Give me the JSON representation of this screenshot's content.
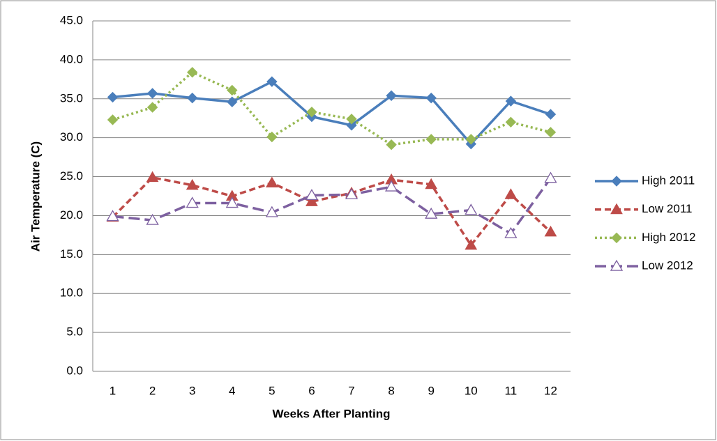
{
  "chart_data": {
    "type": "line",
    "x_label": "Weeks After Planting",
    "y_label": "Air Temperature (C)",
    "categories": [
      "1",
      "2",
      "3",
      "4",
      "5",
      "6",
      "7",
      "8",
      "9",
      "10",
      "11",
      "12"
    ],
    "ylim": [
      0,
      45
    ],
    "yticks": [
      {
        "value": 0,
        "label": "0.0"
      },
      {
        "value": 5,
        "label": "5.0"
      },
      {
        "value": 10,
        "label": "10.0"
      },
      {
        "value": 15,
        "label": "15.0"
      },
      {
        "value": 20,
        "label": "20.0"
      },
      {
        "value": 25,
        "label": "25.0"
      },
      {
        "value": 30,
        "label": "30.0"
      },
      {
        "value": 35,
        "label": "35.0"
      },
      {
        "value": 40,
        "label": "40.0"
      },
      {
        "value": 45,
        "label": "45.0"
      }
    ],
    "grid": true,
    "legend": "right",
    "series": [
      {
        "name": "High 2011",
        "color": "#4a7ebb",
        "line_style": "solid",
        "marker": "diamond",
        "values": [
          35.2,
          35.7,
          35.1,
          34.6,
          37.2,
          32.7,
          31.6,
          35.4,
          35.1,
          29.2,
          34.7,
          33.0
        ]
      },
      {
        "name": "Low 2011",
        "color": "#be4b48",
        "line_style": "dashed",
        "marker": "triangle",
        "values": [
          19.8,
          24.9,
          23.9,
          22.5,
          24.2,
          21.8,
          22.9,
          24.6,
          24.0,
          16.2,
          22.7,
          17.9
        ]
      },
      {
        "name": "High 2012",
        "color": "#98b954",
        "line_style": "dotted",
        "marker": "diamond",
        "values": [
          32.3,
          33.9,
          38.4,
          36.1,
          30.1,
          33.3,
          32.4,
          29.1,
          29.8,
          29.8,
          32.0,
          30.7
        ]
      },
      {
        "name": "Low 2012",
        "color": "#7d60a0",
        "line_style": "longdash",
        "marker": "triangle-open",
        "values": [
          19.9,
          19.4,
          21.6,
          21.6,
          20.4,
          22.6,
          22.7,
          23.7,
          20.2,
          20.7,
          17.7,
          24.8
        ]
      }
    ]
  }
}
